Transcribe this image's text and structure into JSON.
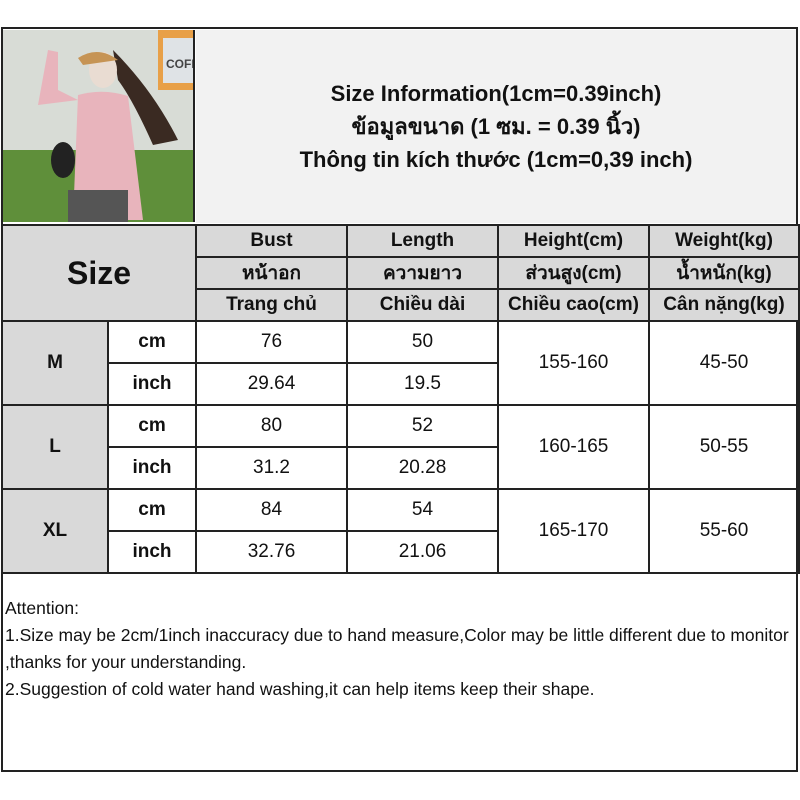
{
  "title": {
    "line1": "Size Information(1cm=0.39inch)",
    "line2": "ข้อมูลขนาด (1 ซม. = 0.39 นิ้ว)",
    "line3": "Thông tin kích thước (1cm=0,39 inch)"
  },
  "photo": {
    "description_icon": "product-photo",
    "sign_text": "COFI"
  },
  "header": {
    "size_label": "Size",
    "columns": [
      {
        "en": "Bust",
        "th": "หน้าอก",
        "vi": "Trang chủ"
      },
      {
        "en": "Length",
        "th": "ความยาว",
        "vi": "Chiều dài"
      },
      {
        "en": "Height(cm)",
        "th": "ส่วนสูง(cm)",
        "vi": "Chiều cao(cm)"
      },
      {
        "en": "Weight(kg)",
        "th": "น้ำหนัก(kg)",
        "vi": "Cân nặng(kg)"
      }
    ]
  },
  "rows": [
    {
      "size": "M",
      "cm_label": "cm",
      "inch_label": "inch",
      "bust_cm": "76",
      "length_cm": "50",
      "bust_inch": "29.64",
      "length_inch": "19.5",
      "height": "155-160",
      "weight": "45-50"
    },
    {
      "size": "L",
      "cm_label": "cm",
      "inch_label": "inch",
      "bust_cm": "80",
      "length_cm": "52",
      "bust_inch": "31.2",
      "length_inch": "20.28",
      "height": "160-165",
      "weight": "50-55"
    },
    {
      "size": "XL",
      "cm_label": "cm",
      "inch_label": "inch",
      "bust_cm": "84",
      "length_cm": "54",
      "bust_inch": "32.76",
      "length_inch": "21.06",
      "height": "165-170",
      "weight": "55-60"
    }
  ],
  "attention": {
    "heading": "Attention:",
    "note1": "1.Size may be 2cm/1inch inaccuracy due to hand measure,Color may be little different due to monitor ,thanks for your understanding.",
    "note2": "2.Suggestion of cold water hand washing,it can help items keep their shape."
  },
  "colors": {
    "header_bg": "#d9d9d9",
    "title_bg": "#f2f2f2",
    "border": "#222222"
  }
}
